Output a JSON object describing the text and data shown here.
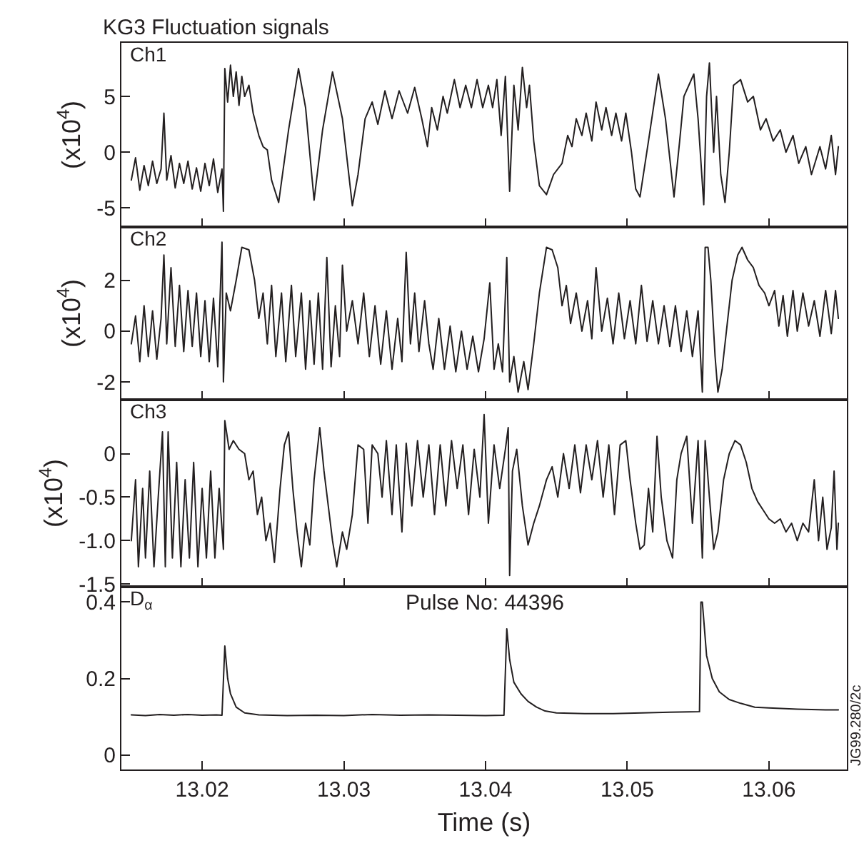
{
  "chart_data": [
    {
      "type": "line",
      "title": "KG3 Fluctuation signals",
      "ylabel": "(x10$^{4}$)",
      "annotations": [
        "Ch1"
      ],
      "xlim": [
        13.0143,
        13.0655
      ],
      "xticks": [
        13.02,
        13.03,
        13.04,
        13.05,
        13.06
      ],
      "ylim": [
        -6.7,
        9.8
      ],
      "yticks": [
        -5,
        0,
        5
      ],
      "tick_labels": "y",
      "series": [
        {
          "color": "#231f20",
          "x": [
            13.015,
            13.0153,
            13.0156,
            13.0159,
            13.0162,
            13.0165,
            13.0168,
            13.0171,
            13.0173,
            13.0175,
            13.0178,
            13.0181,
            13.0184,
            13.0187,
            13.019,
            13.0193,
            13.0196,
            13.0199,
            13.0202,
            13.0205,
            13.0208,
            13.0211,
            13.0214,
            13.0215,
            13.0216,
            13.0218,
            13.022,
            13.0222,
            13.0224,
            13.0226,
            13.0228,
            13.023,
            13.0233,
            13.0236,
            13.024,
            13.0243,
            13.0246,
            13.0249,
            13.0254,
            13.0261,
            13.0268,
            13.0273,
            13.0279,
            13.0285,
            13.0292,
            13.0299,
            13.0306,
            13.031,
            13.0315,
            13.032,
            13.0324,
            13.0329,
            13.0334,
            13.0339,
            13.0345,
            13.035,
            13.0355,
            13.0359,
            13.0362,
            13.0366,
            13.037,
            13.0373,
            13.0378,
            13.0382,
            13.0386,
            13.039,
            13.0394,
            13.0398,
            13.0402,
            13.0405,
            13.0408,
            13.0411,
            13.0414,
            13.0417,
            13.042,
            13.0423,
            13.0426,
            13.0429,
            13.0431,
            13.0434,
            13.0438,
            13.0443,
            13.0448,
            13.0454,
            13.0458,
            13.0461,
            13.0464,
            13.0468,
            13.0471,
            13.0475,
            13.0478,
            13.0482,
            13.0485,
            13.0489,
            13.0492,
            13.0496,
            13.0499,
            13.0503,
            13.0506,
            13.0509,
            13.0515,
            13.0522,
            13.0527,
            13.0533,
            13.0537,
            13.054,
            13.0547,
            13.055,
            13.0554,
            13.0556,
            13.0558,
            13.0561,
            13.0563,
            13.0566,
            13.0569,
            13.0572,
            13.0575,
            13.058,
            13.0585,
            13.0589,
            13.0594,
            13.0598,
            13.0603,
            13.0608,
            13.0612,
            13.0617,
            13.0621,
            13.0626,
            13.063,
            13.0636,
            13.064,
            13.0644,
            13.0647,
            13.0649
          ],
          "values": [
            -2.5,
            -0.5,
            -3.4,
            -1.2,
            -3.0,
            -0.8,
            -2.8,
            -1.5,
            3.5,
            -2.5,
            -0.3,
            -3.2,
            -1.0,
            -2.8,
            -0.8,
            -3.3,
            -1.4,
            -3.5,
            -1.0,
            -3.0,
            -0.6,
            -3.6,
            -1.5,
            -5.3,
            7.5,
            4.5,
            7.8,
            5.0,
            7.2,
            4.2,
            6.8,
            5.0,
            6.0,
            3.5,
            1.5,
            0.5,
            0.2,
            -2.5,
            -4.5,
            2.0,
            7.5,
            4.0,
            -4.3,
            2.0,
            7.2,
            3.0,
            -4.8,
            -2.0,
            3.0,
            4.5,
            2.5,
            5.5,
            3.0,
            5.5,
            3.5,
            5.8,
            3.0,
            0.5,
            4.0,
            2.0,
            5.0,
            3.5,
            6.5,
            4.0,
            6.0,
            4.0,
            6.5,
            4.0,
            6.0,
            4.0,
            6.5,
            1.5,
            6.8,
            -3.5,
            6.0,
            2.0,
            7.6,
            4.0,
            6.0,
            1.0,
            -3.0,
            -3.8,
            -2.0,
            -1.0,
            1.5,
            0.5,
            3.0,
            1.5,
            3.5,
            1.0,
            4.5,
            2.0,
            4.0,
            1.5,
            3.5,
            1.0,
            3.5,
            0.0,
            -3.3,
            -4.0,
            1.0,
            7.0,
            3.0,
            -4.0,
            1.0,
            5.0,
            7.0,
            3.0,
            -4.7,
            5.0,
            8.0,
            0.0,
            5.0,
            -2.0,
            -4.5,
            0.0,
            6.0,
            6.5,
            4.5,
            5.0,
            2.0,
            3.0,
            1.0,
            2.0,
            0.0,
            1.5,
            -1.0,
            0.5,
            -2.0,
            0.5,
            -1.5,
            1.5,
            -2.0,
            0.5
          ]
        }
      ]
    },
    {
      "type": "line",
      "ylabel": "(x10$^{4}$)",
      "annotations": [
        "Ch2"
      ],
      "xlim": [
        13.0143,
        13.0655
      ],
      "xticks": [
        13.02,
        13.03,
        13.04,
        13.05,
        13.06
      ],
      "ylim": [
        -2.7,
        4.1
      ],
      "yticks": [
        -2,
        0,
        2
      ],
      "tick_labels": "y",
      "series": [
        {
          "color": "#231f20",
          "x": [
            13.015,
            13.0153,
            13.0156,
            13.0159,
            13.0162,
            13.0165,
            13.0168,
            13.0171,
            13.0173,
            13.0175,
            13.0178,
            13.0181,
            13.0184,
            13.0187,
            13.019,
            13.0193,
            13.0196,
            13.0199,
            13.0202,
            13.0205,
            13.0208,
            13.0211,
            13.0214,
            13.0215,
            13.0217,
            13.022,
            13.0224,
            13.0228,
            13.0233,
            13.0237,
            13.024,
            13.0243,
            13.0246,
            13.0249,
            13.0252,
            13.0256,
            13.0259,
            13.0263,
            13.0266,
            13.027,
            13.0273,
            13.0276,
            13.0279,
            13.0282,
            13.0285,
            13.0288,
            13.0291,
            13.0294,
            13.0297,
            13.0299,
            13.0302,
            13.0306,
            13.031,
            13.0314,
            13.0318,
            13.0322,
            13.0326,
            13.033,
            13.0334,
            13.0338,
            13.0341,
            13.0344,
            13.0347,
            13.035,
            13.0353,
            13.0357,
            13.036,
            13.0363,
            13.0367,
            13.0371,
            13.0375,
            13.0379,
            13.0383,
            13.0387,
            13.0391,
            13.0395,
            13.0399,
            13.0403,
            13.0406,
            13.0409,
            13.0412,
            13.0415,
            13.0417,
            13.042,
            13.0423,
            13.0427,
            13.043,
            13.0434,
            13.0438,
            13.0443,
            13.0447,
            13.0451,
            13.0454,
            13.0457,
            13.046,
            13.0464,
            13.0468,
            13.0472,
            13.0475,
            13.0478,
            13.0482,
            13.0486,
            13.049,
            13.0494,
            13.0498,
            13.0502,
            13.0506,
            13.051,
            13.0514,
            13.0518,
            13.0522,
            13.0526,
            13.053,
            13.0534,
            13.0538,
            13.0542,
            13.0546,
            13.055,
            13.0553,
            13.0555,
            13.0557,
            13.0559,
            13.0562,
            13.0564,
            13.0567,
            13.057,
            13.0574,
            13.0578,
            13.0581,
            13.0585,
            13.0589,
            13.0593,
            13.0597,
            13.06,
            13.0604,
            13.0607,
            13.061,
            13.0613,
            13.0617,
            13.062,
            13.0624,
            13.0628,
            13.0632,
            13.0636,
            13.064,
            13.0644,
            13.0647,
            13.0649
          ],
          "values": [
            -0.5,
            0.6,
            -1.2,
            1.0,
            -1.0,
            0.8,
            -1.1,
            0.5,
            3.0,
            -0.5,
            2.5,
            -0.6,
            1.8,
            -0.8,
            1.6,
            -0.6,
            1.5,
            -1.0,
            1.2,
            -1.2,
            1.3,
            -1.4,
            3.5,
            -2.0,
            1.5,
            0.8,
            2.0,
            3.3,
            3.2,
            2.0,
            0.5,
            1.5,
            -0.5,
            1.8,
            -1.0,
            1.5,
            -1.2,
            1.8,
            -1.0,
            1.5,
            -1.5,
            1.2,
            -1.3,
            1.5,
            -1.5,
            2.9,
            -1.4,
            1.0,
            -1.0,
            2.6,
            0.0,
            1.2,
            -0.5,
            1.5,
            -1.0,
            1.0,
            -1.3,
            0.8,
            -1.5,
            0.5,
            -1.2,
            3.1,
            -0.5,
            1.5,
            -0.8,
            1.2,
            -0.5,
            -1.5,
            0.5,
            -1.5,
            0.2,
            -1.6,
            0.0,
            -1.5,
            -0.2,
            -1.6,
            -0.3,
            1.9,
            -1.5,
            -0.5,
            -1.6,
            2.9,
            -2.0,
            -1.0,
            -2.4,
            -1.2,
            -2.3,
            -0.5,
            1.5,
            3.3,
            3.2,
            2.5,
            1.0,
            1.8,
            0.3,
            1.5,
            0.0,
            1.2,
            -0.3,
            2.5,
            0.0,
            1.3,
            -0.5,
            1.5,
            -0.3,
            1.2,
            -0.5,
            1.8,
            -0.4,
            1.2,
            -0.5,
            1.0,
            -0.6,
            1.0,
            -0.8,
            0.8,
            -1.0,
            0.8,
            -2.4,
            3.3,
            3.3,
            2.0,
            -1.0,
            -2.4,
            -1.5,
            0.0,
            2.0,
            3.0,
            3.3,
            2.8,
            2.5,
            1.8,
            1.5,
            1.0,
            1.6,
            0.2,
            1.4,
            -0.2,
            1.6,
            0.0,
            1.5,
            0.2,
            1.2,
            -0.2,
            1.6,
            -0.1,
            1.6,
            0.5
          ]
        }
      ]
    },
    {
      "type": "line",
      "ylabel": "(x10$^{4}$)",
      "annotations": [
        "Ch3"
      ],
      "xlim": [
        13.0143,
        13.0655
      ],
      "xticks": [
        13.02,
        13.03,
        13.04,
        13.05,
        13.06
      ],
      "ylim": [
        -1.53,
        0.62
      ],
      "yticks": [
        0,
        -0.5,
        {
          "value": -1,
          "label": "-1.0"
        },
        -1.5
      ],
      "tick_labels": "y",
      "series": [
        {
          "color": "#231f20",
          "x": [
            13.015,
            13.0153,
            13.0155,
            13.0158,
            13.016,
            13.0163,
            13.0166,
            13.0169,
            13.0172,
            13.0174,
            13.0176,
            13.0179,
            13.0182,
            13.0185,
            13.0188,
            13.0191,
            13.0194,
            13.0197,
            13.02,
            13.0203,
            13.0206,
            13.0209,
            13.0212,
            13.0215,
            13.0216,
            13.0219,
            13.0222,
            13.0226,
            13.023,
            13.0233,
            13.0236,
            13.0239,
            13.0242,
            13.0245,
            13.0248,
            13.0251,
            13.0255,
            13.0258,
            13.0261,
            13.0264,
            13.0267,
            13.027,
            13.0273,
            13.0276,
            13.0279,
            13.0283,
            13.0286,
            13.0289,
            13.0292,
            13.0295,
            13.0299,
            13.0302,
            13.0306,
            13.031,
            13.0314,
            13.0317,
            13.032,
            13.0324,
            13.0327,
            13.033,
            13.0334,
            13.0337,
            13.0341,
            13.0344,
            13.0348,
            13.0352,
            13.0356,
            13.036,
            13.0364,
            13.0368,
            13.0372,
            13.0376,
            13.038,
            13.0384,
            13.0388,
            13.0392,
            13.0396,
            13.0399,
            13.0402,
            13.0406,
            13.041,
            13.0414,
            13.0416,
            13.0417,
            13.0419,
            13.0422,
            13.0426,
            13.043,
            13.0434,
            13.0438,
            13.0443,
            13.0447,
            13.0451,
            13.0455,
            13.0459,
            13.0463,
            13.0467,
            13.0471,
            13.0475,
            13.0479,
            13.0483,
            13.0487,
            13.0491,
            13.0495,
            13.0499,
            13.0502,
            13.0506,
            13.0509,
            13.0512,
            13.0515,
            13.0518,
            13.0521,
            13.0524,
            13.0528,
            13.0532,
            13.0535,
            13.0538,
            13.0542,
            13.0546,
            13.055,
            13.0553,
            13.0555,
            13.0558,
            13.0561,
            13.0564,
            13.0568,
            13.0572,
            13.0576,
            13.058,
            13.0584,
            13.0588,
            13.0592,
            13.0596,
            13.06,
            13.0604,
            13.0608,
            13.0612,
            13.0616,
            13.062,
            13.0624,
            13.0628,
            13.0632,
            13.0635,
            13.0638,
            13.0641,
            13.0644,
            13.0646,
            13.0648,
            13.0649
          ],
          "values": [
            -1.0,
            -0.3,
            -1.3,
            -0.4,
            -1.2,
            -0.2,
            -1.3,
            -0.5,
            0.25,
            -1.3,
            0.25,
            -1.2,
            -0.1,
            -1.3,
            -0.3,
            -1.2,
            -0.1,
            -1.3,
            -0.4,
            -1.2,
            -0.2,
            -1.2,
            -0.4,
            -1.1,
            0.38,
            0.05,
            0.15,
            0.05,
            0.0,
            -0.3,
            -0.2,
            -0.7,
            -0.5,
            -1.0,
            -0.8,
            -1.25,
            -0.4,
            0.1,
            0.25,
            -0.4,
            -0.9,
            -1.3,
            -0.8,
            -1.05,
            -0.3,
            0.3,
            -0.2,
            -0.6,
            -1.0,
            -1.3,
            -0.9,
            -1.1,
            -0.7,
            0.1,
            0.05,
            -0.8,
            0.1,
            0.0,
            -0.5,
            0.15,
            -0.7,
            0.1,
            -0.9,
            0.12,
            -0.6,
            0.15,
            -0.5,
            0.1,
            -0.7,
            0.1,
            -0.6,
            0.15,
            -0.4,
            0.1,
            -0.7,
            0.05,
            -0.5,
            0.45,
            -0.8,
            0.1,
            -0.4,
            0.05,
            0.3,
            -1.4,
            -0.2,
            0.05,
            -0.6,
            -1.05,
            -0.8,
            -0.6,
            -0.3,
            -0.15,
            -0.5,
            0.0,
            -0.4,
            0.1,
            -0.45,
            0.1,
            -0.3,
            0.15,
            -0.5,
            0.1,
            -0.7,
            0.1,
            0.15,
            -0.3,
            -0.8,
            -1.1,
            -1.05,
            -0.4,
            -0.9,
            0.2,
            -0.5,
            -1.0,
            -1.2,
            -0.3,
            0.0,
            0.2,
            -0.8,
            0.15,
            -1.2,
            0.15,
            -0.5,
            -1.1,
            -0.9,
            -0.3,
            0.0,
            0.15,
            0.1,
            -0.1,
            -0.4,
            -0.55,
            -0.65,
            -0.75,
            -0.8,
            -0.75,
            -0.9,
            -0.8,
            -1.0,
            -0.8,
            -0.9,
            -0.3,
            -1.0,
            -0.5,
            -1.1,
            -0.85,
            -0.2,
            -1.1,
            -0.8
          ]
        }
      ]
    },
    {
      "type": "line",
      "xlabel": "Time (s)",
      "annotations": [
        "D$_{α}$",
        "Pulse No: 44396",
        "JG99.280/2c"
      ],
      "xlim": [
        13.0143,
        13.0655
      ],
      "xticks": [
        13.02,
        13.03,
        13.04,
        13.05,
        13.06
      ],
      "ylim": [
        -0.038,
        0.44
      ],
      "yticks": [
        0,
        0.2,
        0.4
      ],
      "series": [
        {
          "color": "#231f20",
          "x": [
            13.015,
            13.016,
            13.017,
            13.018,
            13.019,
            13.02,
            13.021,
            13.0214,
            13.0216,
            13.0218,
            13.022,
            13.0224,
            13.023,
            13.024,
            13.026,
            13.028,
            13.03,
            13.032,
            13.034,
            13.036,
            13.038,
            13.04,
            13.0413,
            13.0415,
            13.0417,
            13.042,
            13.0425,
            13.043,
            13.0436,
            13.0442,
            13.045,
            13.047,
            13.049,
            13.051,
            13.053,
            13.0551,
            13.0552,
            13.0553,
            13.0556,
            13.056,
            13.0565,
            13.0572,
            13.058,
            13.059,
            13.06,
            13.062,
            13.064,
            13.0649
          ],
          "values": [
            0.105,
            0.103,
            0.106,
            0.104,
            0.106,
            0.104,
            0.105,
            0.104,
            0.285,
            0.2,
            0.16,
            0.125,
            0.11,
            0.105,
            0.103,
            0.104,
            0.103,
            0.106,
            0.104,
            0.105,
            0.104,
            0.103,
            0.104,
            0.33,
            0.25,
            0.19,
            0.16,
            0.14,
            0.125,
            0.115,
            0.11,
            0.108,
            0.108,
            0.11,
            0.112,
            0.113,
            0.4,
            0.4,
            0.26,
            0.2,
            0.165,
            0.145,
            0.135,
            0.125,
            0.123,
            0.12,
            0.118,
            0.118
          ]
        }
      ]
    }
  ]
}
